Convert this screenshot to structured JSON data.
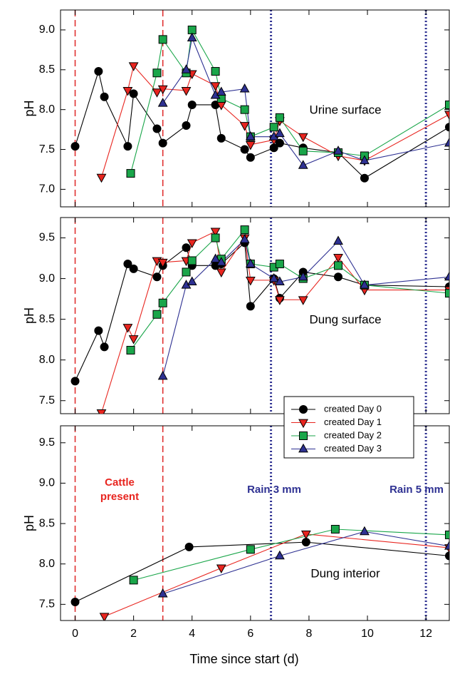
{
  "chart_data": [
    {
      "type": "line",
      "title": "Urine surface",
      "ylabel": "pH",
      "xlim": [
        -0.5,
        12.8
      ],
      "xticks": [
        0,
        2,
        4,
        6,
        8,
        10,
        12
      ],
      "ylim": [
        6.78,
        9.25
      ],
      "yticks": [
        {
          "value": 7,
          "label": "7.0"
        },
        7.5,
        {
          "value": 8,
          "label": "8.0"
        },
        8.5,
        {
          "value": 9,
          "label": "9.0"
        }
      ],
      "vlines": [
        {
          "x": 0,
          "color": "#e03030",
          "style": "dashed"
        },
        {
          "x": 3,
          "color": "#e03030",
          "style": "dashed"
        },
        {
          "x": 6.7,
          "color": "#2e3192",
          "style": "dotted"
        },
        {
          "x": 12,
          "color": "#2e3192",
          "style": "dotted"
        }
      ],
      "series": [
        {
          "name": "created Day 0",
          "color": "#000000",
          "marker": "circle",
          "x": [
            0,
            0.8,
            1,
            1.8,
            2,
            2.8,
            3,
            3.8,
            4,
            4.8,
            5,
            5.8,
            6,
            6.8,
            7,
            7.8,
            9,
            9.9,
            12.8
          ],
          "values": [
            7.54,
            8.48,
            8.16,
            7.54,
            8.2,
            7.76,
            7.58,
            7.8,
            8.06,
            8.06,
            7.64,
            7.5,
            7.4,
            7.52,
            7.58,
            7.52,
            7.46,
            7.14,
            7.78
          ]
        },
        {
          "name": "created Day 1",
          "color": "#e8251f",
          "marker": "triangle-down",
          "x": [
            0.9,
            1.8,
            2,
            2.8,
            3,
            3.8,
            4,
            4.8,
            5,
            5.8,
            6,
            6.8,
            7,
            7.8,
            9,
            9.9,
            12.8
          ],
          "values": [
            7.15,
            8.24,
            8.55,
            8.22,
            8.26,
            8.24,
            8.45,
            8.3,
            8.06,
            7.8,
            7.56,
            7.62,
            7.86,
            7.66,
            7.42,
            7.36,
            7.94
          ]
        },
        {
          "name": "created Day 2",
          "color": "#1aa64a",
          "marker": "square",
          "x": [
            1.9,
            2.8,
            3,
            3.8,
            4,
            4.8,
            5,
            5.8,
            6,
            6.8,
            7,
            7.8,
            9,
            9.9,
            12.8
          ],
          "values": [
            7.2,
            8.46,
            8.88,
            8.46,
            9.0,
            8.48,
            8.14,
            8.0,
            7.66,
            7.78,
            7.9,
            7.48,
            7.46,
            7.42,
            8.06
          ]
        },
        {
          "name": "created Day 3",
          "color": "#2e3192",
          "marker": "triangle-up",
          "x": [
            3,
            3.8,
            4,
            4.8,
            5,
            5.8,
            6,
            6.8,
            7,
            7.8,
            9,
            9.9,
            12.8
          ],
          "values": [
            8.08,
            8.5,
            8.9,
            8.18,
            8.22,
            8.26,
            7.66,
            7.66,
            7.7,
            7.3,
            7.48,
            7.36,
            7.58
          ]
        }
      ]
    },
    {
      "type": "line",
      "title": "Dung surface",
      "ylabel": "pH",
      "legend": "lower right",
      "xlim": [
        -0.5,
        12.8
      ],
      "xticks": [
        0,
        2,
        4,
        6,
        8,
        10,
        12
      ],
      "ylim": [
        7.34,
        9.75
      ],
      "yticks": [
        7.5,
        {
          "value": 8,
          "label": "8.0"
        },
        8.5,
        {
          "value": 9,
          "label": "9.0"
        },
        9.5
      ],
      "vlines": [
        {
          "x": 0,
          "color": "#e03030",
          "style": "dashed"
        },
        {
          "x": 3,
          "color": "#e03030",
          "style": "dashed"
        },
        {
          "x": 6.7,
          "color": "#2e3192",
          "style": "dotted"
        },
        {
          "x": 12,
          "color": "#2e3192",
          "style": "dotted"
        }
      ],
      "series": [
        {
          "name": "created Day 0",
          "color": "#000000",
          "marker": "circle",
          "x": [
            0,
            0.8,
            1,
            1.8,
            2,
            2.8,
            3,
            3.8,
            4,
            4.8,
            5,
            5.8,
            6,
            6.8,
            7,
            7.8,
            9,
            9.9,
            12.8
          ],
          "values": [
            7.74,
            8.36,
            8.16,
            9.18,
            9.12,
            9.02,
            9.16,
            9.38,
            9.16,
            9.16,
            9.18,
            9.44,
            8.66,
            9.0,
            8.76,
            9.08,
            9.02,
            8.92,
            8.9
          ]
        },
        {
          "name": "created Day 1",
          "color": "#e8251f",
          "marker": "triangle-down",
          "x": [
            0.9,
            1.8,
            2,
            2.8,
            3,
            3.8,
            4,
            4.8,
            5,
            5.8,
            6,
            6.8,
            7,
            7.8,
            9,
            9.9,
            12.8
          ],
          "values": [
            7.35,
            8.4,
            8.26,
            9.22,
            9.2,
            9.22,
            9.44,
            9.58,
            9.08,
            9.5,
            8.98,
            8.98,
            8.74,
            8.74,
            9.26,
            8.86,
            8.86
          ]
        },
        {
          "name": "created Day 2",
          "color": "#1aa64a",
          "marker": "square",
          "x": [
            1.9,
            2.8,
            3,
            3.8,
            4,
            4.8,
            5,
            5.8,
            6,
            6.8,
            7,
            7.8,
            9,
            9.9,
            12.8
          ],
          "values": [
            8.12,
            8.56,
            8.7,
            9.08,
            9.22,
            9.5,
            9.24,
            9.6,
            9.18,
            9.14,
            9.18,
            9.0,
            9.16,
            8.92,
            8.82
          ]
        },
        {
          "name": "created Day 3",
          "color": "#2e3192",
          "marker": "triangle-up",
          "x": [
            3,
            3.8,
            4,
            4.8,
            5,
            5.8,
            6,
            6.8,
            7,
            7.8,
            9,
            9.9,
            12.8
          ],
          "values": [
            7.8,
            8.92,
            8.96,
            9.24,
            9.2,
            9.48,
            9.18,
            9.0,
            8.96,
            9.02,
            9.46,
            8.92,
            9.02
          ]
        }
      ]
    },
    {
      "type": "line",
      "title": "Dung interior",
      "ylabel": "pH",
      "xlabel": "Time since start (d)",
      "xlim": [
        -0.5,
        12.8
      ],
      "xticks": [
        0,
        2,
        4,
        6,
        8,
        10,
        12
      ],
      "ylim": [
        7.3,
        9.71
      ],
      "yticks": [
        7.5,
        {
          "value": 8,
          "label": "8.0"
        },
        8.5,
        {
          "value": 9,
          "label": "9.0"
        },
        9.5
      ],
      "vlines": [
        {
          "x": 0,
          "color": "#e03030",
          "style": "dashed"
        },
        {
          "x": 3,
          "color": "#e03030",
          "style": "dashed"
        },
        {
          "x": 6.7,
          "color": "#2e3192",
          "style": "dotted"
        },
        {
          "x": 12,
          "color": "#2e3192",
          "style": "dotted"
        }
      ],
      "annotations": [
        {
          "lines": [
            "Cattle",
            "present"
          ],
          "color": "#e8251f"
        },
        {
          "lines": [
            "Rain 3 mm"
          ],
          "color": "#2e3192"
        },
        {
          "lines": [
            "Rain 5 mm"
          ],
          "color": "#2e3192"
        }
      ],
      "series": [
        {
          "name": "created Day 0",
          "color": "#000000",
          "marker": "circle",
          "x": [
            0,
            3.9,
            7.9,
            12.8
          ],
          "values": [
            7.53,
            8.21,
            8.27,
            8.1
          ]
        },
        {
          "name": "created Day 1",
          "color": "#e8251f",
          "marker": "triangle-down",
          "x": [
            1,
            5,
            7.9,
            12.8
          ],
          "values": [
            7.35,
            7.95,
            8.37,
            8.2
          ]
        },
        {
          "name": "created Day 2",
          "color": "#1aa64a",
          "marker": "square",
          "x": [
            2,
            6,
            8.9,
            12.8
          ],
          "values": [
            7.8,
            8.18,
            8.43,
            8.36
          ]
        },
        {
          "name": "created Day 3",
          "color": "#2e3192",
          "marker": "triangle-up",
          "x": [
            3,
            7,
            9.9,
            12.8
          ],
          "values": [
            7.63,
            8.1,
            8.4,
            8.22
          ]
        }
      ]
    }
  ]
}
